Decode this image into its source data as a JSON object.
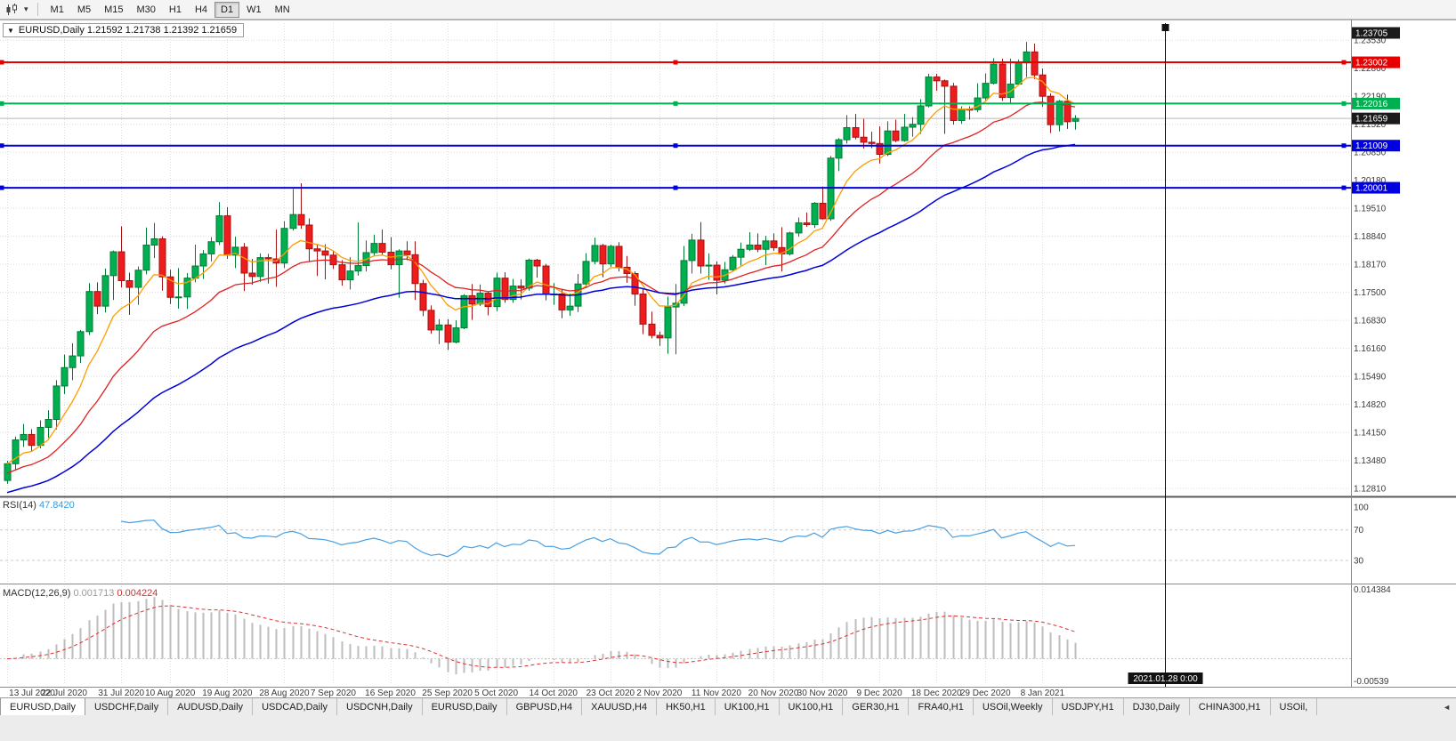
{
  "toolbar": {
    "dropdown_icon": "▾",
    "timeframes": [
      "M1",
      "M5",
      "M15",
      "M30",
      "H1",
      "H4",
      "D1",
      "W1",
      "MN"
    ],
    "active_timeframe": "D1"
  },
  "chart": {
    "collapse_icon": "▼",
    "info_text": "EURUSD,Daily 1.21592 1.21738 1.21392 1.21659",
    "symbol": "EURUSD",
    "period": "Daily",
    "ohlc": {
      "open": "1.21592",
      "high": "1.21738",
      "low": "1.21392",
      "close": "1.21659"
    }
  },
  "price_axis": {
    "ticks": [
      "1.23530",
      "1.22860",
      "1.22190",
      "1.21520",
      "1.20850",
      "1.20180",
      "1.19510",
      "1.18840",
      "1.18170",
      "1.17500",
      "1.16830",
      "1.16160",
      "1.15490",
      "1.14820",
      "1.14150",
      "1.13480",
      "1.12810"
    ],
    "badges": [
      {
        "label": "1.23705",
        "price": 1.23705,
        "color": "#1a1a1a",
        "name": "high-marker"
      },
      {
        "label": "1.23002",
        "price": 1.23002,
        "color": "#e80000",
        "name": "resistance-line-price"
      },
      {
        "label": "1.22016",
        "price": 1.22016,
        "color": "#00b050",
        "name": "pivot-line-price"
      },
      {
        "label": "1.21659",
        "price": 1.21659,
        "color": "#1a1a1a",
        "name": "last-price"
      },
      {
        "label": "1.21009",
        "price": 1.21009,
        "color": "#0000e0",
        "name": "support-line-1-price"
      },
      {
        "label": "1.20001",
        "price": 1.20001,
        "color": "#0000e0",
        "name": "support-line-2-price"
      }
    ]
  },
  "hlines": [
    {
      "price": 1.23002,
      "color": "#e80000"
    },
    {
      "price": 1.22016,
      "color": "#00b050"
    },
    {
      "price": 1.21009,
      "color": "#0000e0"
    },
    {
      "price": 1.20001,
      "color": "#0000e0"
    }
  ],
  "bid_line_price": 1.21659,
  "vline": {
    "tooltip": "2021.01.28 0:00",
    "bar_index": 142
  },
  "rsi_panel": {
    "name": "RSI(14)",
    "value": "47.8420",
    "levels": [
      "100",
      "70",
      "30"
    ],
    "level_values": [
      100,
      70,
      30
    ]
  },
  "macd_panel": {
    "name": "MACD(12,26,9)",
    "value_main": "0.001713",
    "value_signal": "0.004224",
    "axis_max": "0.014384",
    "axis_min": "-0.00539"
  },
  "date_axis": {
    "labels": [
      {
        "i": 0,
        "t": "13 Jul 2020"
      },
      {
        "i": 7,
        "t": "22 Jul 2020"
      },
      {
        "i": 14,
        "t": "31 Jul 2020"
      },
      {
        "i": 20,
        "t": "10 Aug 2020"
      },
      {
        "i": 27,
        "t": "19 Aug 2020"
      },
      {
        "i": 34,
        "t": "28 Aug 2020"
      },
      {
        "i": 40,
        "t": "7 Sep 2020"
      },
      {
        "i": 47,
        "t": "16 Sep 2020"
      },
      {
        "i": 54,
        "t": "25 Sep 2020"
      },
      {
        "i": 60,
        "t": "5 Oct 2020"
      },
      {
        "i": 67,
        "t": "14 Oct 2020"
      },
      {
        "i": 74,
        "t": "23 Oct 2020"
      },
      {
        "i": 80,
        "t": "2 Nov 2020"
      },
      {
        "i": 87,
        "t": "11 Nov 2020"
      },
      {
        "i": 94,
        "t": "20 Nov 2020"
      },
      {
        "i": 100,
        "t": "30 Nov 2020"
      },
      {
        "i": 107,
        "t": "9 Dec 2020"
      },
      {
        "i": 114,
        "t": "18 Dec 2020"
      },
      {
        "i": 120,
        "t": "29 Dec 2020"
      },
      {
        "i": 127,
        "t": "8 Jan 2021"
      }
    ]
  },
  "tabs": {
    "items": [
      "EURUSD,Daily",
      "USDCHF,Daily",
      "AUDUSD,Daily",
      "USDCAD,Daily",
      "USDCNH,Daily",
      "EURUSD,Daily",
      "GBPUSD,H4",
      "XAUUSD,H4",
      "HK50,H1",
      "UK100,H1",
      "UK100,H1",
      "GER30,H1",
      "FRA40,H1",
      "USOil,Weekly",
      "USDJPY,H1",
      "DJ30,Daily",
      "CHINA300,H1",
      "USOil,"
    ],
    "active_index": 0,
    "scroll_icon": "◄"
  },
  "chart_data": {
    "type": "candlestick",
    "symbol": "EURUSD",
    "timeframe": "Daily",
    "price_range": [
      1.1262,
      1.2385
    ],
    "colors": {
      "up": "#00b050",
      "down": "#ee1c1c",
      "up_border": "#007a33",
      "down_border": "#a31212"
    },
    "candles": [
      [
        1.13,
        1.1347,
        1.1292,
        1.134
      ],
      [
        1.134,
        1.1405,
        1.1325,
        1.1397
      ],
      [
        1.1397,
        1.1435,
        1.138,
        1.141
      ],
      [
        1.141,
        1.1423,
        1.137,
        1.1384
      ],
      [
        1.1384,
        1.1444,
        1.1377,
        1.1427
      ],
      [
        1.1427,
        1.1468,
        1.1402,
        1.1446
      ],
      [
        1.1446,
        1.154,
        1.1422,
        1.1526
      ],
      [
        1.1526,
        1.1601,
        1.1507,
        1.157
      ],
      [
        1.157,
        1.1628,
        1.154,
        1.1598
      ],
      [
        1.1598,
        1.166,
        1.1581,
        1.1656
      ],
      [
        1.1656,
        1.1772,
        1.1648,
        1.1752
      ],
      [
        1.1752,
        1.1774,
        1.1698,
        1.1717
      ],
      [
        1.1717,
        1.1807,
        1.1702,
        1.179
      ],
      [
        1.179,
        1.185,
        1.1732,
        1.1847
      ],
      [
        1.1847,
        1.1908,
        1.1762,
        1.1778
      ],
      [
        1.1778,
        1.1797,
        1.1696,
        1.1762
      ],
      [
        1.1762,
        1.1812,
        1.172,
        1.1803
      ],
      [
        1.1803,
        1.1905,
        1.1793,
        1.1863
      ],
      [
        1.1863,
        1.1916,
        1.1832,
        1.1878
      ],
      [
        1.1878,
        1.1884,
        1.1754,
        1.1787
      ],
      [
        1.1787,
        1.1804,
        1.1722,
        1.1738
      ],
      [
        1.1738,
        1.1808,
        1.1711,
        1.1739
      ],
      [
        1.1739,
        1.1796,
        1.171,
        1.1784
      ],
      [
        1.1784,
        1.1864,
        1.1774,
        1.1813
      ],
      [
        1.1813,
        1.1851,
        1.1782,
        1.1842
      ],
      [
        1.1842,
        1.1882,
        1.1824,
        1.1871
      ],
      [
        1.1871,
        1.1966,
        1.1863,
        1.1933
      ],
      [
        1.1933,
        1.1954,
        1.183,
        1.1839
      ],
      [
        1.1839,
        1.1883,
        1.1808,
        1.1858
      ],
      [
        1.1858,
        1.1868,
        1.1753,
        1.1796
      ],
      [
        1.1796,
        1.183,
        1.1768,
        1.1788
      ],
      [
        1.1788,
        1.1843,
        1.1775,
        1.1833
      ],
      [
        1.1833,
        1.1842,
        1.1771,
        1.183
      ],
      [
        1.183,
        1.19,
        1.1763,
        1.182
      ],
      [
        1.182,
        1.192,
        1.1808,
        1.1903
      ],
      [
        1.1903,
        1.1997,
        1.1898,
        1.1936
      ],
      [
        1.1936,
        1.2011,
        1.1902,
        1.1911
      ],
      [
        1.1911,
        1.1927,
        1.1822,
        1.1854
      ],
      [
        1.1854,
        1.1865,
        1.1789,
        1.1849
      ],
      [
        1.1849,
        1.1865,
        1.1781,
        1.1839
      ],
      [
        1.1839,
        1.1849,
        1.1806,
        1.1816
      ],
      [
        1.1816,
        1.1827,
        1.1766,
        1.178
      ],
      [
        1.178,
        1.1834,
        1.1757,
        1.1801
      ],
      [
        1.1801,
        1.1917,
        1.179,
        1.1814
      ],
      [
        1.1814,
        1.1874,
        1.18,
        1.1845
      ],
      [
        1.1845,
        1.1888,
        1.1838,
        1.1867
      ],
      [
        1.1867,
        1.19,
        1.184,
        1.1846
      ],
      [
        1.1846,
        1.1882,
        1.1805,
        1.1816
      ],
      [
        1.1816,
        1.1853,
        1.1737,
        1.1849
      ],
      [
        1.1849,
        1.1872,
        1.1827,
        1.184
      ],
      [
        1.184,
        1.1872,
        1.1732,
        1.1771
      ],
      [
        1.1771,
        1.178,
        1.1693,
        1.1707
      ],
      [
        1.1707,
        1.1719,
        1.1651,
        1.166
      ],
      [
        1.166,
        1.1686,
        1.1626,
        1.1672
      ],
      [
        1.1672,
        1.1686,
        1.1612,
        1.1631
      ],
      [
        1.1631,
        1.1683,
        1.1628,
        1.1665
      ],
      [
        1.1665,
        1.1746,
        1.1662,
        1.1742
      ],
      [
        1.1742,
        1.177,
        1.1684,
        1.1722
      ],
      [
        1.1722,
        1.1769,
        1.1717,
        1.1748
      ],
      [
        1.1748,
        1.1752,
        1.1695,
        1.1716
      ],
      [
        1.1716,
        1.1797,
        1.1705,
        1.1784
      ],
      [
        1.1784,
        1.1798,
        1.1725,
        1.1733
      ],
      [
        1.1733,
        1.1782,
        1.1725,
        1.1765
      ],
      [
        1.1765,
        1.1781,
        1.1733,
        1.176
      ],
      [
        1.176,
        1.1831,
        1.1754,
        1.1827
      ],
      [
        1.1827,
        1.183,
        1.1785,
        1.1813
      ],
      [
        1.1813,
        1.1818,
        1.1731,
        1.1745
      ],
      [
        1.1745,
        1.1772,
        1.172,
        1.1746
      ],
      [
        1.1746,
        1.1758,
        1.1688,
        1.1708
      ],
      [
        1.1708,
        1.1747,
        1.1694,
        1.1717
      ],
      [
        1.1717,
        1.1794,
        1.1703,
        1.177
      ],
      [
        1.177,
        1.1844,
        1.176,
        1.1824
      ],
      [
        1.1824,
        1.1881,
        1.1817,
        1.1862
      ],
      [
        1.1862,
        1.1866,
        1.1786,
        1.1818
      ],
      [
        1.1818,
        1.1864,
        1.1811,
        1.186
      ],
      [
        1.186,
        1.187,
        1.18,
        1.181
      ],
      [
        1.181,
        1.1837,
        1.1773,
        1.1795
      ],
      [
        1.1795,
        1.18,
        1.1718,
        1.1746
      ],
      [
        1.1746,
        1.1759,
        1.165,
        1.1674
      ],
      [
        1.1674,
        1.1704,
        1.164,
        1.1647
      ],
      [
        1.1647,
        1.1656,
        1.1622,
        1.1641
      ],
      [
        1.1641,
        1.174,
        1.1603,
        1.1715
      ],
      [
        1.1715,
        1.177,
        1.1602,
        1.1724
      ],
      [
        1.1724,
        1.1861,
        1.1717,
        1.1826
      ],
      [
        1.1826,
        1.189,
        1.1795,
        1.1875
      ],
      [
        1.1875,
        1.1918,
        1.1795,
        1.1813
      ],
      [
        1.1813,
        1.1843,
        1.178,
        1.1815
      ],
      [
        1.1815,
        1.1824,
        1.1745,
        1.1779
      ],
      [
        1.1779,
        1.1823,
        1.1771,
        1.1804
      ],
      [
        1.1804,
        1.1839,
        1.1799,
        1.1834
      ],
      [
        1.1834,
        1.1869,
        1.1814,
        1.1853
      ],
      [
        1.1853,
        1.1894,
        1.1849,
        1.1863
      ],
      [
        1.1863,
        1.1891,
        1.1846,
        1.1853
      ],
      [
        1.1853,
        1.1885,
        1.1815,
        1.1873
      ],
      [
        1.1873,
        1.1891,
        1.1849,
        1.1857
      ],
      [
        1.1857,
        1.1906,
        1.18,
        1.1842
      ],
      [
        1.1842,
        1.1895,
        1.1838,
        1.1892
      ],
      [
        1.1892,
        1.1929,
        1.1883,
        1.1916
      ],
      [
        1.1916,
        1.1941,
        1.1907,
        1.1912
      ],
      [
        1.1912,
        1.1966,
        1.1904,
        1.1963
      ],
      [
        1.1963,
        1.2003,
        1.1924,
        1.1926
      ],
      [
        1.1926,
        1.2076,
        1.1921,
        1.2071
      ],
      [
        1.2071,
        1.2119,
        1.204,
        1.2115
      ],
      [
        1.2115,
        1.2174,
        1.2106,
        1.2144
      ],
      [
        1.2144,
        1.2177,
        1.2116,
        1.2121
      ],
      [
        1.2121,
        1.2165,
        1.2094,
        1.2109
      ],
      [
        1.2109,
        1.2134,
        1.2095,
        1.2106
      ],
      [
        1.2106,
        1.2147,
        1.2058,
        1.208
      ],
      [
        1.208,
        1.2159,
        1.2076,
        1.2136
      ],
      [
        1.2136,
        1.2163,
        1.2109,
        1.2113
      ],
      [
        1.2113,
        1.2177,
        1.211,
        1.2145
      ],
      [
        1.2145,
        1.2169,
        1.2122,
        1.2152
      ],
      [
        1.2152,
        1.2212,
        1.2129,
        1.2196
      ],
      [
        1.2196,
        1.2273,
        1.2192,
        1.2265
      ],
      [
        1.2265,
        1.2273,
        1.2232,
        1.2256
      ],
      [
        1.2256,
        1.2259,
        1.2129,
        1.2243
      ],
      [
        1.2243,
        1.2251,
        1.2151,
        1.2161
      ],
      [
        1.2161,
        1.2195,
        1.2153,
        1.2188
      ],
      [
        1.2188,
        1.2195,
        1.2163,
        1.2187
      ],
      [
        1.2187,
        1.225,
        1.2181,
        1.2215
      ],
      [
        1.2215,
        1.2274,
        1.2209,
        1.225
      ],
      [
        1.225,
        1.231,
        1.2247,
        1.2296
      ],
      [
        1.2296,
        1.2309,
        1.2208,
        1.2216
      ],
      [
        1.2216,
        1.2309,
        1.22,
        1.2248
      ],
      [
        1.2248,
        1.2307,
        1.2245,
        1.2299
      ],
      [
        1.2299,
        1.2349,
        1.2265,
        1.2325
      ],
      [
        1.2325,
        1.2345,
        1.226,
        1.227
      ],
      [
        1.227,
        1.2285,
        1.2193,
        1.2219
      ],
      [
        1.2219,
        1.2226,
        1.2131,
        1.2151
      ],
      [
        1.2151,
        1.221,
        1.2135,
        1.2207
      ],
      [
        1.2207,
        1.2223,
        1.2141,
        1.2158
      ],
      [
        1.21592,
        1.21738,
        1.21392,
        1.21659
      ]
    ],
    "moving_averages": [
      {
        "period": 8,
        "method": "ema",
        "color": "#ff9c00"
      },
      {
        "period": 20,
        "method": "ema",
        "color": "#e02020",
        "seed": 1.1315
      },
      {
        "period": 45,
        "method": "ema",
        "color": "#0000d8",
        "seed": 1.1268,
        "width": 1.5
      }
    ],
    "indicators": {
      "rsi": {
        "period": 14,
        "current": 47.842,
        "color": "#4a9fe0"
      },
      "macd": {
        "fast": 12,
        "slow": 26,
        "signal": 9,
        "current_main": 0.001713,
        "current_signal": 0.004224,
        "scale_max": 0.014384,
        "scale_min": -0.00539
      }
    }
  }
}
